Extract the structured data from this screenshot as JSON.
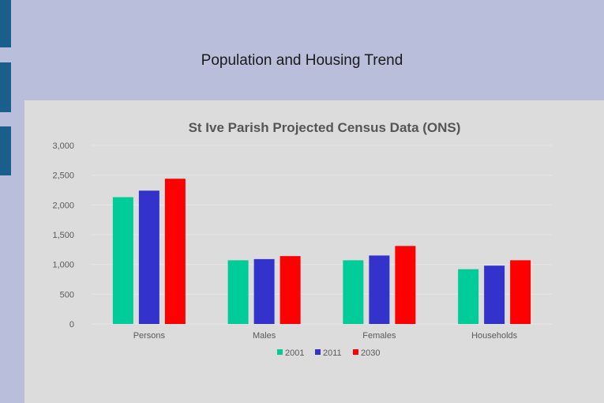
{
  "slide": {
    "title": "Population and Housing Trend"
  },
  "colors": {
    "background": "#b9bedb",
    "accent_bar": "#1a5f8c",
    "panel": "#dcdcdc"
  },
  "chart_data": {
    "type": "bar",
    "title": "St Ive Parish Projected Census Data (ONS)",
    "categories": [
      "Persons",
      "Males",
      "Females",
      "Households"
    ],
    "series": [
      {
        "name": "2001",
        "color": "#00cc99",
        "values": [
          2130,
          1070,
          1070,
          920
        ]
      },
      {
        "name": "2011",
        "color": "#3333cc",
        "values": [
          2240,
          1090,
          1150,
          980
        ]
      },
      {
        "name": "2030",
        "color": "#ff0000",
        "values": [
          2440,
          1140,
          1310,
          1070
        ]
      }
    ],
    "ylim": [
      0,
      3000
    ],
    "yticks": [
      0,
      500,
      1000,
      1500,
      2000,
      2500,
      3000
    ],
    "ytick_labels": [
      "0",
      "500",
      "1,000",
      "1,500",
      "2,000",
      "2,500",
      "3,000"
    ],
    "xlabel": "",
    "ylabel": "",
    "grid": true,
    "legend": "bottom-center"
  }
}
